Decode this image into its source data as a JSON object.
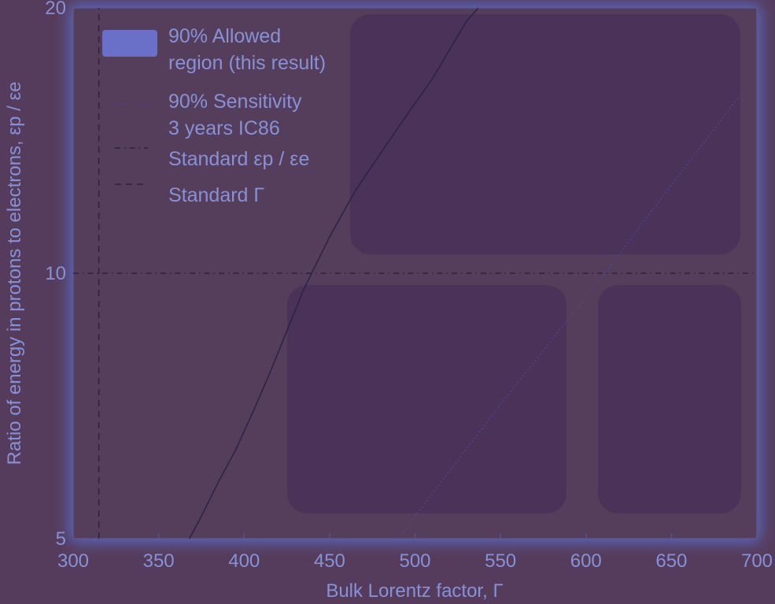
{
  "chart_data": {
    "type": "area",
    "xlabel": "Bulk Lorentz factor, Γ",
    "ylabel": "Ratio of energy in protons to electrons, εp / εe",
    "xlim": [
      300,
      700
    ],
    "ylim": [
      5,
      20
    ],
    "y_scale": "log",
    "x_ticks": [
      "300",
      "350",
      "400",
      "450",
      "500",
      "550",
      "600",
      "650",
      "700"
    ],
    "y_ticks": [
      "5",
      "10",
      "20"
    ],
    "grid": false,
    "legend_position": "top-left",
    "legend": [
      {
        "label": "90% Allowed\nregion (this result)",
        "style": "filled-area"
      },
      {
        "label": "90% Sensitivity\n3 years IC86",
        "style": "dotted"
      },
      {
        "label": "Standard εp / εe",
        "style": "dash-dot"
      },
      {
        "label": "Standard Γ",
        "style": "dashed"
      }
    ],
    "series": [
      {
        "name": "90% Allowed region (this result)",
        "style": "filled-area",
        "x": [
          368,
          375,
          385,
          395,
          405,
          415,
          425,
          435,
          450,
          465,
          480,
          495,
          510,
          520,
          530,
          537
        ],
        "y": [
          5.0,
          5.3,
          5.8,
          6.3,
          6.95,
          7.7,
          8.6,
          9.6,
          11.0,
          12.4,
          13.7,
          15.1,
          16.6,
          17.9,
          19.3,
          20.0
        ]
      },
      {
        "name": "90% Sensitivity 3 years IC86",
        "style": "dotted",
        "x": [
          490,
          550,
          611,
          650,
          690
        ],
        "y": [
          5.0,
          7.1,
          10.0,
          12.6,
          15.9
        ]
      },
      {
        "name": "Standard εp / εe",
        "style": "dash-dot",
        "x": [
          300,
          700
        ],
        "y": [
          10,
          10
        ]
      },
      {
        "name": "Standard Γ",
        "style": "dashed",
        "x": [
          315,
          315
        ],
        "y": [
          5,
          20
        ]
      }
    ]
  },
  "colors": {
    "background": "#553c5c",
    "plot_fill": "#4b3258",
    "glow": "#5e78e8",
    "line": "#2a2248",
    "text": "#8891d6",
    "axis": "#5a5890"
  }
}
